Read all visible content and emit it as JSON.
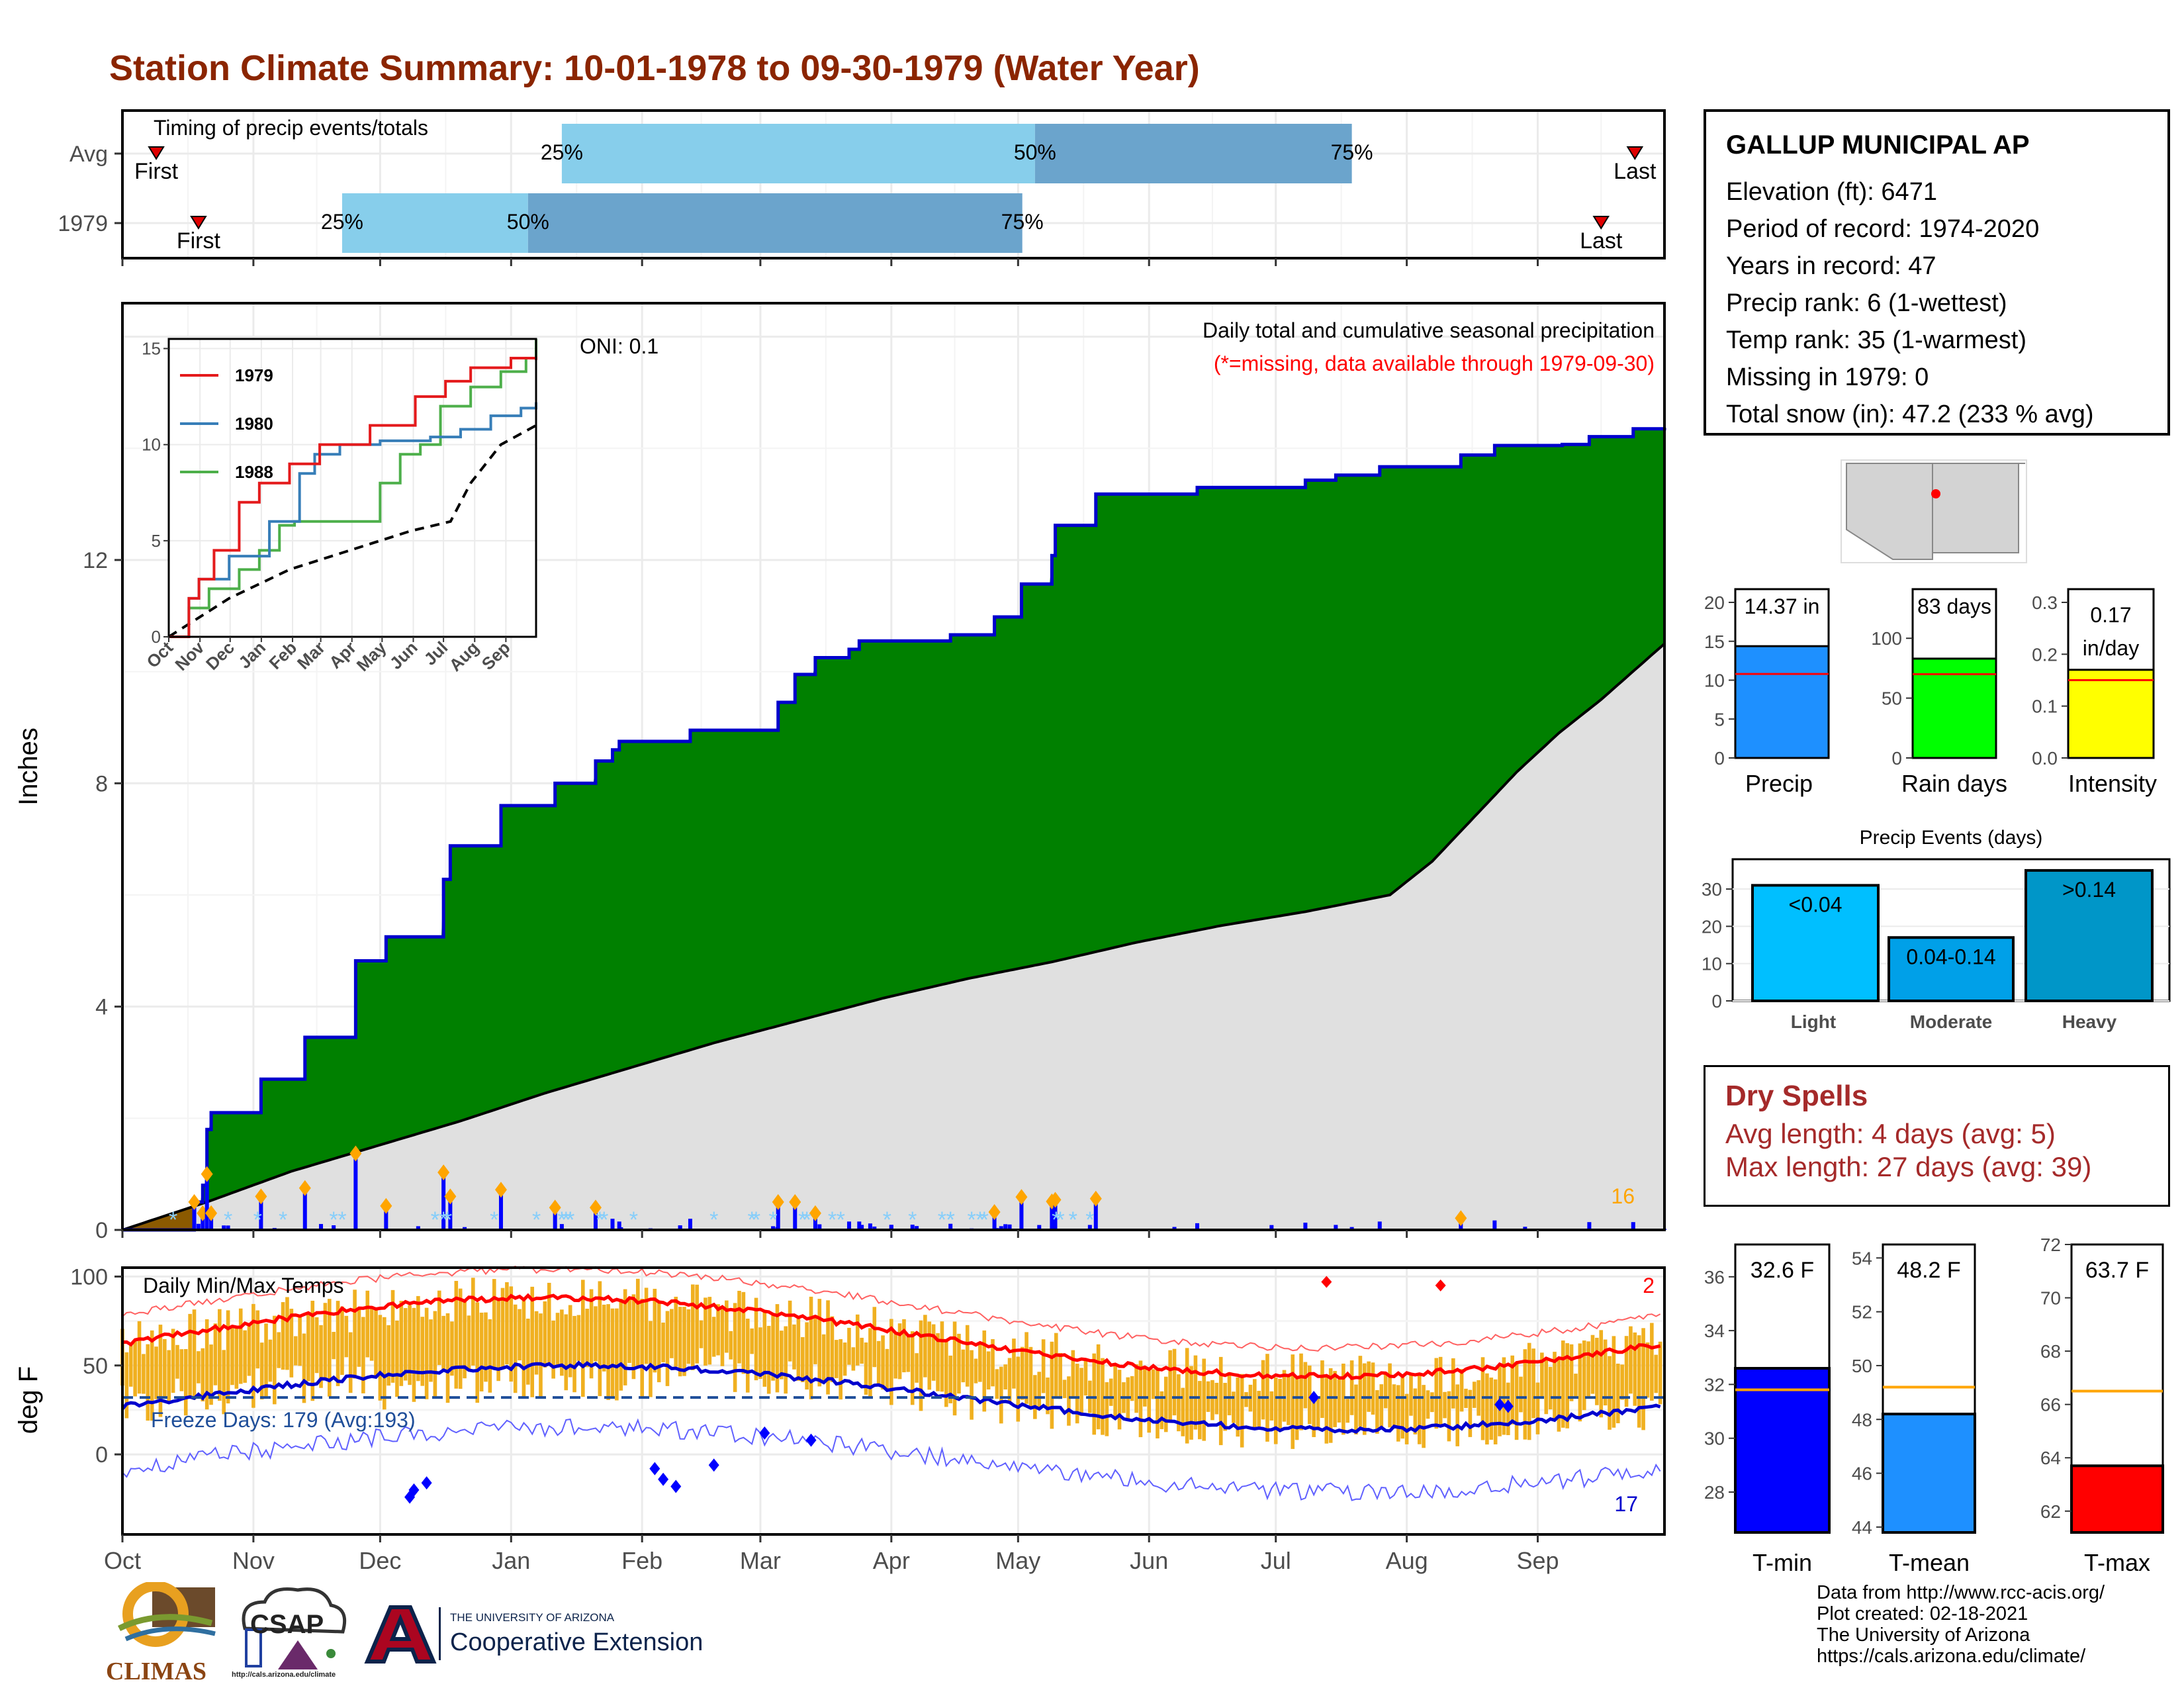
{
  "title": "Station Climate Summary: 10-01-1978 to 09-30-1979 (Water Year)",
  "timing": {
    "title": "Timing of precip events/totals",
    "rows": [
      {
        "label": "Avg",
        "first_label": "First",
        "last_label": "Last",
        "first_day": 8,
        "last_day": 358,
        "p25_day": 104,
        "p50_day": 216,
        "p75_day": 291,
        "p25_label": "25%",
        "p50_label": "50%",
        "p75_label": "75%"
      },
      {
        "label": "1979",
        "first_label": "First",
        "last_label": "Last",
        "first_day": 18,
        "last_day": 350,
        "p25_day": 52,
        "p50_day": 96,
        "p75_day": 213,
        "p25_label": "25%",
        "p50_label": "50%",
        "p75_label": "75%"
      }
    ]
  },
  "precip_panel": {
    "ylabel": "Inches",
    "label_top": "Daily total and cumulative seasonal precipitation",
    "label_missing": "(*=missing, data available through 1979-09-30)",
    "oni": "ONI: 0.1",
    "corner_count": "16",
    "yticks": [
      "0",
      "4",
      "8",
      "12"
    ],
    "colors": {
      "cumulative": "#008000",
      "outline": "#0000CD",
      "normal": "#E0E0E0",
      "deficit": "#8B5A00",
      "bars": "#0000FF",
      "marker": "#FFA500",
      "snow": "#87CEFA"
    }
  },
  "inset": {
    "yticks": [
      "0",
      "5",
      "10",
      "15"
    ],
    "months": [
      "Oct",
      "Nov",
      "Dec",
      "Jan",
      "Feb",
      "Mar",
      "Apr",
      "May",
      "Jun",
      "Jul",
      "Aug",
      "Sep"
    ],
    "series": [
      {
        "name": "1979",
        "color": "#E41A1C"
      },
      {
        "name": "1980",
        "color": "#377EB8"
      },
      {
        "name": "1988",
        "color": "#4DAF4A"
      }
    ]
  },
  "temp_panel": {
    "ylabel": "deg F",
    "label": "Daily Min/Max Temps",
    "freeze": "Freeze Days: 179 (Avg:193)",
    "count_high": "2",
    "count_low": "17",
    "yticks": [
      "0",
      "50",
      "100"
    ],
    "colors": {
      "bar": "#F0B020",
      "max_avg": "#FF0000",
      "min_avg": "#0000CD",
      "freeze": "#1F4E99"
    }
  },
  "x_months": [
    "Oct",
    "Nov",
    "Dec",
    "Jan",
    "Feb",
    "Mar",
    "Apr",
    "May",
    "Jun",
    "Jul",
    "Aug",
    "Sep"
  ],
  "station": {
    "name": "GALLUP MUNICIPAL AP",
    "lines": [
      "Elevation (ft): 6471",
      "Period of record: 1974-2020",
      "Years in record: 47",
      "Precip rank: 6 (1-wettest)",
      "Temp rank: 35 (1-warmest)",
      "Missing in 1979: 0",
      "Total snow (in): 47.2 (233 % avg)"
    ]
  },
  "small_bars": [
    {
      "label": "Precip",
      "value": 14.37,
      "avg": 10.8,
      "text": "14.37 in",
      "color": "#1E90FF",
      "ymax": 20,
      "yticks": [
        "0",
        "5",
        "10",
        "15",
        "20"
      ]
    },
    {
      "label": "Rain days",
      "value": 83,
      "avg": 70,
      "text": "83 days",
      "color": "#00FF00",
      "ymax": 130,
      "yticks": [
        "0",
        "50",
        "100"
      ]
    },
    {
      "label": "Intensity",
      "value": 0.17,
      "avg": 0.15,
      "text": "0.17 in/day",
      "color": "#FFFF00",
      "ymax": 0.3,
      "yticks": [
        "0.0",
        "0.1",
        "0.2",
        "0.3"
      ]
    }
  ],
  "events": {
    "title": "Precip Events (days)",
    "yticks": [
      "0",
      "10",
      "20",
      "30"
    ],
    "bars": [
      {
        "label": "Light",
        "value": 31,
        "text": "<0.04",
        "color": "#00BFFF"
      },
      {
        "label": "Moderate",
        "value": 17,
        "text": "0.04-0.14",
        "color": "#00A0E8"
      },
      {
        "label": "Heavy",
        "value": 35,
        "text": ">0.14",
        "color": "#0096C8"
      }
    ]
  },
  "dry_spells": {
    "title": "Dry Spells",
    "avg": "Avg length: 4 days (avg: 5)",
    "max": "Max length: 27 days (avg: 39)"
  },
  "temp_bars": [
    {
      "label": "T-min",
      "value": 32.6,
      "avg": 31.8,
      "text": "32.6 F",
      "color": "#0000FF",
      "ymin": 26.5,
      "ymax": 37.2,
      "yticks": [
        {
          "v": 28,
          "t": "28"
        },
        {
          "v": 30,
          "t": "30"
        },
        {
          "v": 32,
          "t": "32"
        },
        {
          "v": 34,
          "t": "34"
        },
        {
          "v": 36,
          "t": "36"
        }
      ]
    },
    {
      "label": "T-mean",
      "value": 48.2,
      "avg": 49.2,
      "text": "48.2 F",
      "color": "#1E90FF",
      "ymin": 43.8,
      "ymax": 54.5,
      "yticks": [
        {
          "v": 44,
          "t": "44"
        },
        {
          "v": 46,
          "t": "46"
        },
        {
          "v": 48,
          "t": "48"
        },
        {
          "v": 50,
          "t": "50"
        },
        {
          "v": 52,
          "t": "52"
        },
        {
          "v": 54,
          "t": "54"
        }
      ]
    },
    {
      "label": "T-max",
      "value": 63.7,
      "avg": 66.5,
      "text": "63.7 F",
      "color": "#FF0000",
      "ymin": 61.2,
      "ymax": 72,
      "yticks": [
        {
          "v": 62,
          "t": "62"
        },
        {
          "v": 64,
          "t": "64"
        },
        {
          "v": 66,
          "t": "66"
        },
        {
          "v": 68,
          "t": "68"
        },
        {
          "v": 70,
          "t": "70"
        },
        {
          "v": 72,
          "t": "72"
        }
      ]
    }
  ],
  "footer": [
    "Data from http://www.rcc-acis.org/",
    "Plot created: 02-18-2021",
    "The University of Arizona",
    "https://cals.arizona.edu/climate/"
  ],
  "logos": {
    "climas": "CLIMAS",
    "csap": "CSAP",
    "csap_url": "http://cals.arizona.edu/climate",
    "ua_top": "THE UNIVERSITY OF ARIZONA",
    "ua_bottom": "Cooperative Extension"
  }
}
